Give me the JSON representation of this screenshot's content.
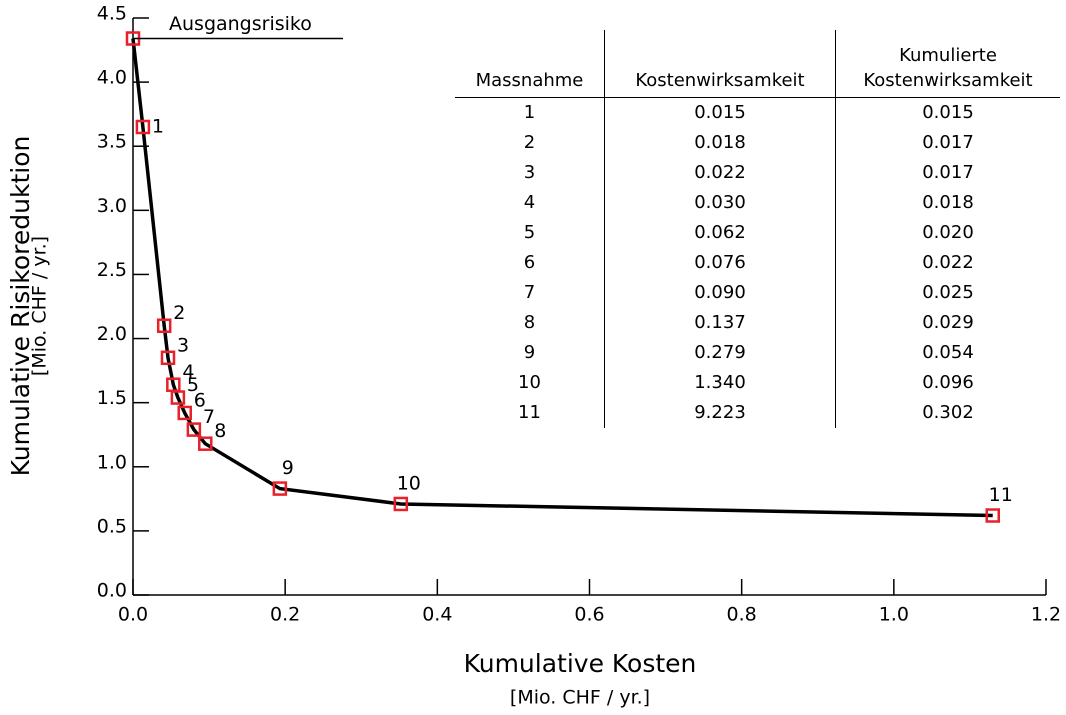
{
  "chart_data": {
    "type": "line",
    "x_label": "Kumulative Kosten",
    "x_unit": "[Mio. CHF / yr.]",
    "y_label": "Kumulative Risikoreduktion",
    "y_unit": "[Mio. CHF / yr.]",
    "labels": [
      "Ausgangsrisiko",
      "1",
      "2",
      "3",
      "4",
      "5",
      "6",
      "7",
      "8",
      "9",
      "10",
      "11"
    ],
    "x": [
      0,
      0.013,
      0.041,
      0.046,
      0.053,
      0.059,
      0.068,
      0.08,
      0.095,
      0.193,
      0.352,
      1.13
    ],
    "y": [
      4.34,
      3.65,
      2.1,
      1.85,
      1.64,
      1.54,
      1.42,
      1.29,
      1.18,
      0.83,
      0.71,
      0.62
    ],
    "color": "#000000",
    "marker_color": "#e8202a",
    "xlim": [
      0,
      1.2
    ],
    "xticks": [
      {
        "value": 0,
        "label": "0.0"
      },
      0.2,
      0.4,
      0.6,
      0.8,
      {
        "value": 1,
        "label": "1.0"
      },
      1.2
    ],
    "ylim": [
      0,
      4.5
    ],
    "yticks": [
      {
        "value": 0,
        "label": "0.0"
      },
      0.5,
      {
        "value": 1,
        "label": "1.0"
      },
      1.5,
      {
        "value": 2,
        "label": "2.0"
      },
      2.5,
      {
        "value": 3,
        "label": "3.0"
      },
      3.5,
      {
        "value": 4,
        "label": "4.0"
      },
      4.5
    ]
  },
  "table": {
    "columns": [
      "Massnahme",
      "Kostenwirksamkeit",
      "Kumulierte Kostenwirksamkeit"
    ],
    "rows": [
      [
        "1",
        "0.015",
        "0.015"
      ],
      [
        "2",
        "0.018",
        "0.017"
      ],
      [
        "3",
        "0.022",
        "0.017"
      ],
      [
        "4",
        "0.030",
        "0.018"
      ],
      [
        "5",
        "0.062",
        "0.020"
      ],
      [
        "6",
        "0.076",
        "0.022"
      ],
      [
        "7",
        "0.090",
        "0.025"
      ],
      [
        "8",
        "0.137",
        "0.029"
      ],
      [
        "9",
        "0.279",
        "0.054"
      ],
      [
        "10",
        "1.340",
        "0.096"
      ],
      [
        "11",
        "9.223",
        "0.302"
      ]
    ]
  }
}
